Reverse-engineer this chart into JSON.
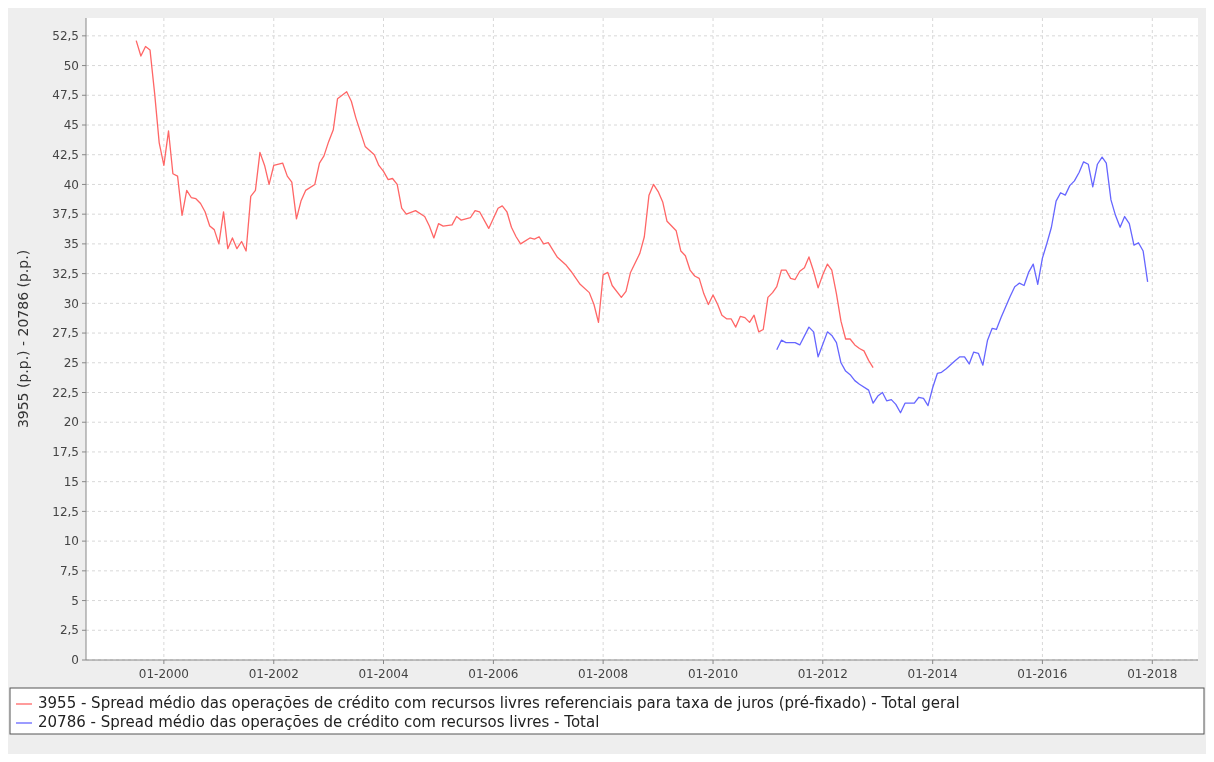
{
  "chart_data": {
    "type": "line",
    "ylabel": "3955 (p.p.) - 20786 (p.p.)",
    "xlim": [
      "1998-08",
      "2018-11"
    ],
    "xticks": [
      {
        "value": "2000-01",
        "label": "01-2000"
      },
      {
        "value": "2002-01",
        "label": "01-2002"
      },
      {
        "value": "2004-01",
        "label": "01-2004"
      },
      {
        "value": "2006-01",
        "label": "01-2006"
      },
      {
        "value": "2008-01",
        "label": "01-2008"
      },
      {
        "value": "2010-01",
        "label": "01-2010"
      },
      {
        "value": "2012-01",
        "label": "01-2012"
      },
      {
        "value": "2014-01",
        "label": "01-2014"
      },
      {
        "value": "2016-01",
        "label": "01-2016"
      },
      {
        "value": "2018-01",
        "label": "01-2018"
      }
    ],
    "ylim": [
      0,
      54
    ],
    "yticks": [
      0,
      {
        "value": 2.5,
        "label": "2,5"
      },
      5,
      {
        "value": 7.5,
        "label": "7,5"
      },
      10,
      {
        "value": 12.5,
        "label": "12,5"
      },
      15,
      {
        "value": 17.5,
        "label": "17,5"
      },
      20,
      {
        "value": 22.5,
        "label": "22,5"
      },
      25,
      {
        "value": 27.5,
        "label": "27,5"
      },
      30,
      {
        "value": 32.5,
        "label": "32,5"
      },
      35,
      {
        "value": 37.5,
        "label": "37,5"
      },
      40,
      {
        "value": 42.5,
        "label": "42,5"
      },
      45,
      {
        "value": 47.5,
        "label": "47,5"
      },
      50,
      {
        "value": 52.5,
        "label": "52,5"
      }
    ],
    "grid": true,
    "legend": "bottom",
    "marker": "none",
    "line_style": "solid",
    "series": [
      {
        "name": "3955 - Spread médio das operações de crédito com recursos livres referenciais para taxa de juros (pré-fixado) - Total geral",
        "color": "#ff6666",
        "x": [
          "1999-07",
          "1999-08",
          "1999-09",
          "1999-10",
          "1999-11",
          "1999-12",
          "2000-01",
          "2000-02",
          "2000-03",
          "2000-04",
          "2000-05",
          "2000-06",
          "2000-07",
          "2000-08",
          "2000-09",
          "2000-10",
          "2000-11",
          "2000-12",
          "2001-01",
          "2001-02",
          "2001-03",
          "2001-04",
          "2001-05",
          "2001-06",
          "2001-07",
          "2001-08",
          "2001-09",
          "2001-10",
          "2001-11",
          "2001-12",
          "2002-01",
          "2002-03",
          "2002-04",
          "2002-05",
          "2002-06",
          "2002-07",
          "2002-08",
          "2002-10",
          "2002-11",
          "2002-12",
          "2003-01",
          "2003-02",
          "2003-03",
          "2003-05",
          "2003-06",
          "2003-07",
          "2003-09",
          "2003-11",
          "2003-12",
          "2004-01",
          "2004-02",
          "2004-03",
          "2004-04",
          "2004-05",
          "2004-06",
          "2004-08",
          "2004-10",
          "2004-11",
          "2004-12",
          "2005-01",
          "2005-02",
          "2005-04",
          "2005-05",
          "2005-06",
          "2005-08",
          "2005-09",
          "2005-10",
          "2005-12",
          "2006-02",
          "2006-03",
          "2006-04",
          "2006-05",
          "2006-06",
          "2006-07",
          "2006-09",
          "2006-10",
          "2006-11",
          "2006-12",
          "2007-01",
          "2007-03",
          "2007-05",
          "2007-06",
          "2007-08",
          "2007-10",
          "2007-11",
          "2007-12",
          "2008-01",
          "2008-02",
          "2008-03",
          "2008-05",
          "2008-06",
          "2008-07",
          "2008-09",
          "2008-10",
          "2008-11",
          "2008-12",
          "2009-01",
          "2009-02",
          "2009-03",
          "2009-05",
          "2009-06",
          "2009-07",
          "2009-08",
          "2009-09",
          "2009-10",
          "2009-11",
          "2009-12",
          "2010-01",
          "2010-02",
          "2010-03",
          "2010-04",
          "2010-05",
          "2010-06",
          "2010-07",
          "2010-08",
          "2010-09",
          "2010-10",
          "2010-11",
          "2010-12",
          "2011-01",
          "2011-02",
          "2011-03",
          "2011-04",
          "2011-05",
          "2011-06",
          "2011-07",
          "2011-08",
          "2011-09",
          "2011-10",
          "2011-11",
          "2011-12",
          "2012-01",
          "2012-02",
          "2012-03",
          "2012-04",
          "2012-05",
          "2012-06",
          "2012-07",
          "2012-08",
          "2012-09",
          "2012-10",
          "2012-11",
          "2012-12"
        ],
        "values": [
          52.1,
          50.8,
          51.6,
          51.3,
          47.6,
          43.5,
          41.6,
          44.5,
          40.9,
          40.7,
          37.4,
          39.5,
          38.9,
          38.8,
          38.4,
          37.7,
          36.5,
          36.2,
          35.0,
          37.7,
          34.6,
          35.5,
          34.6,
          35.2,
          34.4,
          39.0,
          39.5,
          42.7,
          41.6,
          40.0,
          41.6,
          41.8,
          40.7,
          40.2,
          37.1,
          38.6,
          39.5,
          40.0,
          41.8,
          42.4,
          43.6,
          44.6,
          47.2,
          47.8,
          47.0,
          45.6,
          43.2,
          42.5,
          41.6,
          41.1,
          40.4,
          40.5,
          40.0,
          38.0,
          37.5,
          37.8,
          37.3,
          36.5,
          35.5,
          36.7,
          36.5,
          36.6,
          37.3,
          37.0,
          37.2,
          37.8,
          37.7,
          36.3,
          38.0,
          38.2,
          37.7,
          36.4,
          35.6,
          35.0,
          35.5,
          35.4,
          35.6,
          35.0,
          35.1,
          33.9,
          33.2,
          32.7,
          31.6,
          30.9,
          29.9,
          28.4,
          32.4,
          32.6,
          31.5,
          30.5,
          31.0,
          32.6,
          34.2,
          35.6,
          39.1,
          40.0,
          39.4,
          38.5,
          36.9,
          36.1,
          34.4,
          34.0,
          32.8,
          32.3,
          32.1,
          30.8,
          29.9,
          30.7,
          29.9,
          29.0,
          28.7,
          28.7,
          28.0,
          28.9,
          28.8,
          28.4,
          29.0,
          27.6,
          27.8,
          30.5,
          30.9,
          31.4,
          32.8,
          32.8,
          32.1,
          32.0,
          32.7,
          33.0,
          33.9,
          32.7,
          31.3,
          32.4,
          33.3,
          32.8,
          30.8,
          28.5,
          27.0,
          27.0,
          26.5,
          26.2,
          26.0,
          25.2,
          24.6
        ]
      },
      {
        "name": "20786 - Spread médio das operações de crédito com recursos livres - Total",
        "color": "#6666ff",
        "x": [
          "2011-03",
          "2011-04",
          "2011-05",
          "2011-07",
          "2011-08",
          "2011-10",
          "2011-11",
          "2011-12",
          "2012-02",
          "2012-03",
          "2012-04",
          "2012-05",
          "2012-06",
          "2012-07",
          "2012-08",
          "2012-09",
          "2012-11",
          "2012-12",
          "2013-01",
          "2013-02",
          "2013-03",
          "2013-04",
          "2013-05",
          "2013-06",
          "2013-07",
          "2013-09",
          "2013-10",
          "2013-11",
          "2013-12",
          "2014-01",
          "2014-02",
          "2014-03",
          "2014-04",
          "2014-06",
          "2014-07",
          "2014-08",
          "2014-09",
          "2014-10",
          "2014-11",
          "2014-12",
          "2015-01",
          "2015-02",
          "2015-03",
          "2015-04",
          "2015-05",
          "2015-06",
          "2015-07",
          "2015-08",
          "2015-09",
          "2015-10",
          "2015-11",
          "2015-12",
          "2016-01",
          "2016-02",
          "2016-03",
          "2016-04",
          "2016-05",
          "2016-06",
          "2016-07",
          "2016-08",
          "2016-09",
          "2016-10",
          "2016-11",
          "2016-12",
          "2017-01",
          "2017-02",
          "2017-03",
          "2017-04",
          "2017-05",
          "2017-06",
          "2017-07",
          "2017-08",
          "2017-09",
          "2017-10",
          "2017-11",
          "2017-12"
        ],
        "values": [
          26.1,
          26.9,
          26.7,
          26.7,
          26.5,
          28.0,
          27.6,
          25.5,
          27.6,
          27.3,
          26.7,
          25.0,
          24.3,
          24.0,
          23.5,
          23.2,
          22.7,
          21.6,
          22.2,
          22.5,
          21.8,
          21.9,
          21.5,
          20.8,
          21.6,
          21.6,
          22.1,
          22.0,
          21.4,
          22.9,
          24.1,
          24.2,
          24.5,
          25.2,
          25.5,
          25.5,
          24.9,
          25.9,
          25.8,
          24.8,
          26.9,
          27.9,
          27.8,
          28.8,
          29.7,
          30.6,
          31.4,
          31.7,
          31.5,
          32.6,
          33.3,
          31.6,
          33.8,
          35.1,
          36.4,
          38.6,
          39.3,
          39.1,
          39.9,
          40.3,
          41.0,
          41.9,
          41.7,
          39.8,
          41.7,
          42.3,
          41.8,
          38.7,
          37.4,
          36.4,
          37.3,
          36.7,
          34.9,
          35.1,
          34.4,
          31.8
        ]
      }
    ]
  }
}
